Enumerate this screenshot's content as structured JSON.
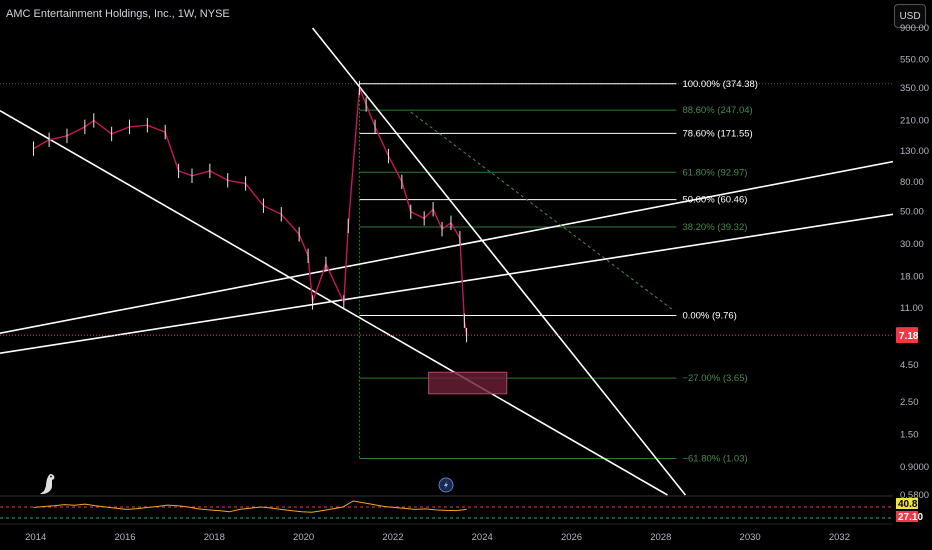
{
  "header": {
    "title": "AMC Entertainment Holdings, Inc., 1W, NYSE",
    "currency": "USD"
  },
  "colors": {
    "background": "#000000",
    "candle": "#c2185b",
    "fib_major": "#ffffff",
    "fib_minor": "#2e7d32",
    "trendline": "#ffffff",
    "price_badge": "#f23645",
    "zone": "#6d1f36",
    "rsi_line": "#f5a623",
    "rsi_upper_badge": "#f0e442",
    "rsi_lower_badge": "#f23645"
  },
  "chart_data": {
    "type": "line",
    "scale": "log",
    "ylim": [
      0.58,
      900
    ],
    "xlim": [
      2013.2,
      2033.2
    ],
    "x_ticks": [
      "2014",
      "2016",
      "2018",
      "2020",
      "2022",
      "2024",
      "2026",
      "2028",
      "2030",
      "2032"
    ],
    "y_ticks": [
      "900.00",
      "550.00",
      "350.00",
      "210.00",
      "130.00",
      "80.00",
      "50.00",
      "30.00",
      "18.00",
      "11.00",
      "7.18",
      "4.50",
      "2.50",
      "1.50",
      "0.9000",
      "0.5800"
    ],
    "price_series": {
      "x": [
        2013.95,
        2014.3,
        2014.7,
        2015.1,
        2015.3,
        2015.7,
        2016.1,
        2016.5,
        2016.9,
        2017.2,
        2017.5,
        2017.9,
        2018.3,
        2018.7,
        2019.1,
        2019.5,
        2019.9,
        2020.1,
        2020.2,
        2020.5,
        2020.9,
        2021.0,
        2021.25,
        2021.4,
        2021.6,
        2021.9,
        2022.2,
        2022.4,
        2022.7,
        2022.9,
        2023.1,
        2023.3,
        2023.5,
        2023.6,
        2023.65
      ],
      "values": [
        135,
        155,
        165,
        190,
        210,
        170,
        190,
        195,
        175,
        95,
        88,
        95,
        82,
        78,
        55,
        48,
        35,
        25,
        12,
        22,
        12,
        40,
        350,
        270,
        190,
        120,
        80,
        50,
        45,
        52,
        38,
        42,
        33,
        9,
        7.18
      ]
    },
    "last_price": "7.18",
    "fib_levels": [
      {
        "label": "100.00% (374.38)",
        "value": 374.38,
        "major": true
      },
      {
        "label": "88.60% (247.04)",
        "value": 247.04,
        "major": false
      },
      {
        "label": "78.60% (171.55)",
        "value": 171.55,
        "major": true
      },
      {
        "label": "61.80% (92.97)",
        "value": 92.97,
        "major": false
      },
      {
        "label": "50.00% (60.46)",
        "value": 60.46,
        "major": true
      },
      {
        "label": "38.20% (39.32)",
        "value": 39.32,
        "major": false
      },
      {
        "label": "0.00% (9.76)",
        "value": 9.76,
        "major": true
      },
      {
        "label": "−27.00% (3.65)",
        "value": 3.65,
        "major": false
      },
      {
        "label": "−61.80% (1.03)",
        "value": 1.03,
        "major": false
      }
    ],
    "fib_x_range": [
      2021.25,
      2028.35
    ],
    "trendlines": [
      {
        "from": [
          2020.2,
          900
        ],
        "to": [
          2028.55,
          0.58
        ]
      },
      {
        "from": [
          2013.2,
          245
        ],
        "to": [
          2028.15,
          0.58
        ]
      },
      {
        "from": [
          2013.2,
          7.4
        ],
        "to": [
          2033.2,
          110
        ]
      },
      {
        "from": [
          2013.2,
          5.4
        ],
        "to": [
          2033.2,
          48
        ]
      }
    ],
    "dashed_line": {
      "from": [
        2022.4,
        240
      ],
      "to": [
        2028.3,
        10.5
      ]
    },
    "zone": {
      "x": [
        2022.8,
        2024.55
      ],
      "y": [
        2.85,
        4.0
      ]
    },
    "rsi": {
      "upper_value": "40.85",
      "lower_value": "27.10",
      "values": [
        48,
        52,
        55,
        60,
        57,
        62,
        55,
        50,
        45,
        40,
        43,
        48,
        52,
        58,
        55,
        50,
        42,
        38,
        35,
        30,
        40,
        45,
        50,
        46,
        40,
        35,
        30,
        28,
        35,
        42,
        50,
        75,
        68,
        60,
        52,
        48,
        44,
        40,
        42,
        38,
        36,
        35,
        40
      ]
    }
  }
}
